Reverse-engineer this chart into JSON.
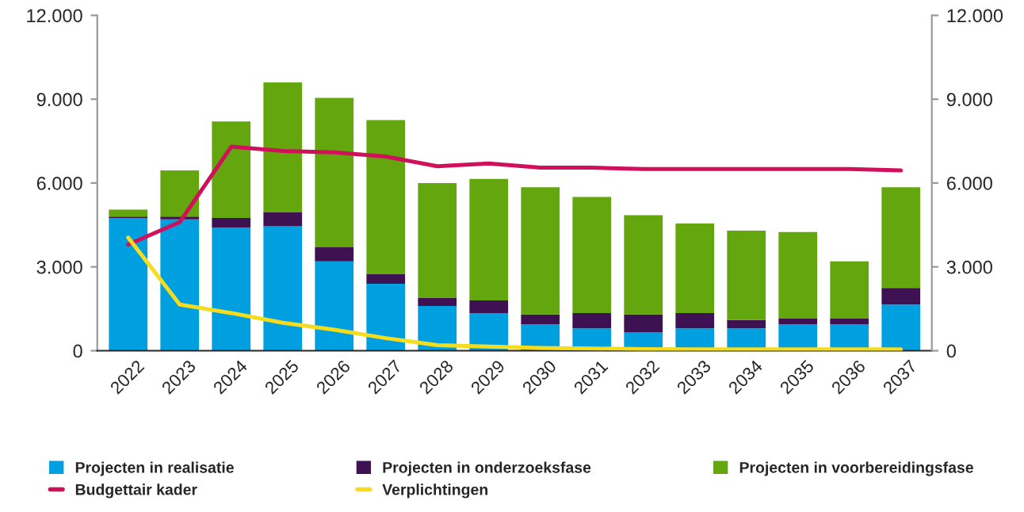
{
  "chart_data": {
    "type": "bar",
    "stacked": true,
    "categories": [
      "2022",
      "2023",
      "2024",
      "2025",
      "2026",
      "2027",
      "2028",
      "2029",
      "2030",
      "2031",
      "2032",
      "2033",
      "2034",
      "2035",
      "2036",
      "2037"
    ],
    "series": [
      {
        "name": "Projecten in realisatie",
        "color": "#009fe0",
        "values": [
          4750,
          4700,
          4400,
          4450,
          3200,
          2400,
          1600,
          1350,
          950,
          800,
          650,
          800,
          800,
          950,
          950,
          1650
        ]
      },
      {
        "name": "Projecten in onderzoeksfase",
        "color": "#3d1152",
        "values": [
          50,
          100,
          350,
          500,
          500,
          350,
          300,
          450,
          350,
          550,
          650,
          550,
          300,
          200,
          200,
          600
        ]
      },
      {
        "name": "Projecten in voorbereidingsfase",
        "color": "#63a60d",
        "values": [
          250,
          1650,
          3450,
          4650,
          5350,
          5500,
          4100,
          4350,
          4550,
          4150,
          3550,
          3200,
          3200,
          3100,
          2050,
          3600
        ]
      },
      {
        "name": "Budgettair kader",
        "type": "line",
        "color": "#d0105a",
        "values": [
          3800,
          4600,
          7300,
          7150,
          7100,
          6950,
          6600,
          6700,
          6550,
          6550,
          6500,
          6500,
          6500,
          6500,
          6500,
          6450
        ]
      },
      {
        "name": "Verplichtingen",
        "type": "line",
        "color": "#f5dc1e",
        "values": [
          4050,
          1650,
          1350,
          1000,
          750,
          450,
          200,
          150,
          100,
          80,
          60,
          50,
          50,
          50,
          50,
          50
        ]
      }
    ],
    "ylim": [
      0,
      12000
    ],
    "yticks": [
      {
        "value": 0,
        "label": "0"
      },
      {
        "value": 3000,
        "label": "3.000"
      },
      {
        "value": 6000,
        "label": "6.000"
      },
      {
        "value": 9000,
        "label": "9.000"
      },
      {
        "value": 12000,
        "label": "12.000"
      }
    ],
    "y2lim": [
      0,
      12000
    ],
    "y2ticks": [
      {
        "value": 0,
        "label": "0"
      },
      {
        "value": 3000,
        "label": "3.000"
      },
      {
        "value": 6000,
        "label": "6.000"
      },
      {
        "value": 9000,
        "label": "9.000"
      },
      {
        "value": 12000,
        "label": "12.000"
      }
    ],
    "grid": false,
    "legend": "bottom"
  }
}
